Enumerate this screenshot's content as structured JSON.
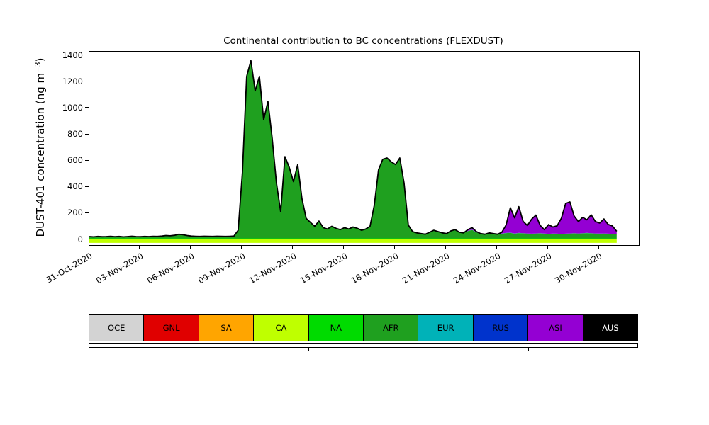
{
  "chart_data": {
    "type": "area",
    "stacked": true,
    "title": "Continental contribution to BC concentrations (FLEXDUST)",
    "ylabel": {
      "prefix": "DUST-401 concentration (ng m",
      "sup": "−3",
      "suffix": ")"
    },
    "x_sampling": {
      "start_day": 0,
      "step_days": 0.25,
      "origin_tick": "31-Oct-2020"
    },
    "xlim_days": [
      0,
      32.3
    ],
    "ylim": [
      -40,
      1430
    ],
    "stack_base": -20,
    "grid": false,
    "yticks": [
      0,
      200,
      400,
      600,
      800,
      1000,
      1200,
      1400
    ],
    "xticks": [
      {
        "day": 0,
        "label": "31-Oct-2020"
      },
      {
        "day": 3,
        "label": "03-Nov-2020"
      },
      {
        "day": 6,
        "label": "06-Nov-2020"
      },
      {
        "day": 9,
        "label": "09-Nov-2020"
      },
      {
        "day": 12,
        "label": "12-Nov-2020"
      },
      {
        "day": 15,
        "label": "15-Nov-2020"
      },
      {
        "day": 18,
        "label": "18-Nov-2020"
      },
      {
        "day": 21,
        "label": "21-Nov-2020"
      },
      {
        "day": 24,
        "label": "24-Nov-2020"
      },
      {
        "day": 27,
        "label": "27-Nov-2020"
      },
      {
        "day": 30,
        "label": "30-Nov-2020"
      }
    ],
    "series": [
      {
        "name": "OCE",
        "color": "#D3D3D3",
        "constant": 3
      },
      {
        "name": "GNL",
        "color": "#E00000",
        "constant": 0.5
      },
      {
        "name": "SA",
        "color": "#FFA500",
        "constant": 1.5
      },
      {
        "name": "CA",
        "color": "#BFFF00",
        "constant": 18
      },
      {
        "name": "NA",
        "color": "#00DB00",
        "constant": 8
      },
      {
        "name": "AFR",
        "color": "#1FA01F",
        "values": [
          12,
          10,
          13,
          11,
          12,
          14,
          11,
          13,
          10,
          12,
          15,
          12,
          11,
          13,
          12,
          14,
          13,
          16,
          20,
          18,
          22,
          30,
          26,
          20,
          16,
          14,
          13,
          15,
          14,
          13,
          15,
          14,
          13,
          14,
          16,
          60,
          500,
          1230,
          1350,
          1120,
          1230,
          900,
          1040,
          760,
          420,
          200,
          620,
          540,
          430,
          560,
          300,
          150,
          120,
          90,
          130,
          80,
          70,
          90,
          75,
          65,
          80,
          70,
          85,
          75,
          60,
          70,
          90,
          250,
          520,
          600,
          610,
          580,
          560,
          610,
          420,
          100,
          50,
          40,
          35,
          30,
          45,
          60,
          50,
          40,
          35,
          55,
          65,
          45,
          40,
          55,
          65,
          45,
          35,
          30,
          40,
          35,
          30,
          35,
          40,
          42,
          35,
          40,
          38,
          36,
          34,
          36,
          38,
          35,
          33,
          35,
          34,
          32,
          34,
          36,
          38,
          36,
          38,
          40,
          38,
          36,
          35,
          36,
          34,
          33,
          32
        ]
      },
      {
        "name": "EUR",
        "color": "#00B2B8",
        "constant": 1
      },
      {
        "name": "RUS",
        "color": "#0033CC",
        "constant": 0.5
      },
      {
        "name": "ASI",
        "color": "#9400D3",
        "values": [
          0,
          0,
          0,
          0,
          0,
          0,
          0,
          0,
          0,
          0,
          0,
          0,
          0,
          0,
          0,
          0,
          0,
          0,
          0,
          0,
          0,
          0,
          0,
          0,
          0,
          0,
          0,
          0,
          0,
          0,
          0,
          0,
          0,
          0,
          0,
          0,
          0,
          0,
          0,
          0,
          0,
          0,
          0,
          0,
          0,
          0,
          0,
          0,
          0,
          0,
          0,
          0,
          0,
          0,
          0,
          0,
          0,
          0,
          0,
          0,
          0,
          0,
          0,
          0,
          0,
          0,
          0,
          0,
          0,
          0,
          0,
          0,
          0,
          0,
          0,
          0,
          0,
          0,
          0,
          0,
          0,
          0,
          0,
          0,
          0,
          0,
          0,
          0,
          0,
          10,
          15,
          5,
          0,
          0,
          0,
          0,
          0,
          10,
          60,
          190,
          120,
          200,
          90,
          60,
          110,
          140,
          60,
          30,
          70,
          50,
          60,
          120,
          230,
          240,
          130,
          90,
          120,
          100,
          140,
          90,
          80,
          110,
          70,
          60,
          20
        ]
      },
      {
        "name": "AUS",
        "color": "#000000",
        "constant": 0
      }
    ],
    "outline": {
      "color": "#000000",
      "width": 1.8
    },
    "bottom_edge": {
      "color": "#BFFF00",
      "width": 1.2
    },
    "legend": {
      "labels": [
        "OCE",
        "GNL",
        "SA",
        "CA",
        "NA",
        "AFR",
        "EUR",
        "RUS",
        "ASI",
        "AUS"
      ],
      "aus_text_color": "#FFFFFF",
      "position": "bottom"
    }
  }
}
